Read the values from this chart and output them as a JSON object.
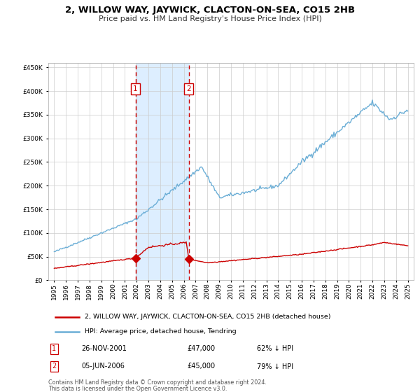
{
  "title": "2, WILLOW WAY, JAYWICK, CLACTON-ON-SEA, CO15 2HB",
  "subtitle": "Price paid vs. HM Land Registry's House Price Index (HPI)",
  "legend_line1": "2, WILLOW WAY, JAYWICK, CLACTON-ON-SEA, CO15 2HB (detached house)",
  "legend_line2": "HPI: Average price, detached house, Tendring",
  "transaction1_date": "26-NOV-2001",
  "transaction1_price": 47000,
  "transaction1_pct": "62% ↓ HPI",
  "transaction1_year": 2001.9,
  "transaction2_date": "05-JUN-2006",
  "transaction2_price": 45000,
  "transaction2_pct": "79% ↓ HPI",
  "transaction2_year": 2006.43,
  "footer1": "Contains HM Land Registry data © Crown copyright and database right 2024.",
  "footer2": "This data is licensed under the Open Government Licence v3.0.",
  "hpi_color": "#6baed6",
  "price_color": "#cc0000",
  "shade_color": "#ddeeff",
  "vline_color": "#cc0000",
  "ylim_min": 0,
  "ylim_max": 460000,
  "xlim_min": 1994.5,
  "xlim_max": 2025.5
}
